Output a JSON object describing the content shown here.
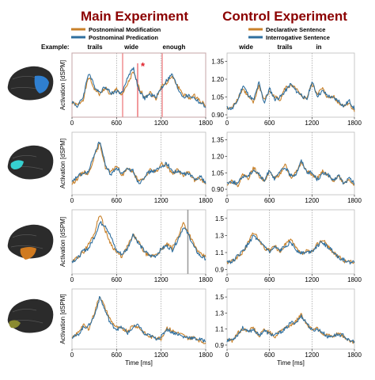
{
  "titles": {
    "main": "Main Experiment",
    "control": "Control Experiment"
  },
  "legend": {
    "main": [
      "Postnominal Modification",
      "Postnominal Predication"
    ],
    "control": [
      "Declarative Sentence",
      "Interrogative Sentence"
    ]
  },
  "example_label": "Example:",
  "words": {
    "main": [
      "trails",
      "wide",
      "enough"
    ],
    "control": [
      "wide",
      "trails",
      "in"
    ]
  },
  "significance_marker": "*",
  "colors": {
    "series_a": "#c8812a",
    "series_b": "#2f6f9f",
    "title": "#8b0000",
    "highlight": "#e8555a",
    "brain": "#2b2b2b"
  },
  "brain_regions": [
    "blue-region-icon",
    "cyan-region-icon",
    "orange-region-icon",
    "olive-region-icon"
  ],
  "chart_data": [
    {
      "panel": "main-row1",
      "type": "line",
      "xlabel": "",
      "ylabel": "Activation [dSPM]",
      "xlim": [
        0,
        1800
      ],
      "xticks": [
        "0",
        "600",
        "1200",
        "1800"
      ],
      "ylim": [
        0.88,
        1.42
      ],
      "yticks": [],
      "word_onsets": [
        0,
        600,
        1200
      ],
      "x": [
        0,
        75,
        150,
        225,
        300,
        375,
        450,
        525,
        600,
        675,
        750,
        825,
        900,
        975,
        1050,
        1125,
        1200,
        1275,
        1350,
        1425,
        1500,
        1575,
        1650,
        1725,
        1800
      ],
      "series": [
        {
          "name": "Postnominal Modification",
          "values": [
            1.0,
            0.98,
            1.03,
            1.22,
            1.12,
            1.07,
            1.13,
            1.06,
            1.12,
            1.06,
            1.16,
            1.26,
            1.13,
            1.05,
            1.09,
            1.03,
            1.14,
            1.17,
            1.22,
            1.14,
            1.07,
            1.04,
            1.06,
            1.02,
            0.98
          ]
        },
        {
          "name": "Postnominal Predication",
          "values": [
            1.01,
            0.97,
            1.05,
            1.26,
            1.14,
            1.09,
            1.14,
            1.08,
            1.1,
            1.08,
            1.22,
            1.3,
            1.1,
            1.04,
            1.07,
            1.05,
            1.12,
            1.19,
            1.24,
            1.12,
            1.05,
            1.06,
            1.04,
            1.0,
            0.97
          ]
        }
      ]
    },
    {
      "panel": "control-row1",
      "type": "line",
      "xlabel": "",
      "ylabel": "",
      "xlim": [
        0,
        1800
      ],
      "xticks": [
        "0",
        "600",
        "1200",
        "1800"
      ],
      "ylim": [
        0.88,
        1.42
      ],
      "yticks": [
        "0.90",
        "1.05",
        "1.20",
        "1.35"
      ],
      "word_onsets": [
        0,
        600,
        1200
      ],
      "x": [
        0,
        75,
        150,
        225,
        300,
        375,
        450,
        525,
        600,
        675,
        750,
        825,
        900,
        975,
        1050,
        1125,
        1200,
        1275,
        1350,
        1425,
        1500,
        1575,
        1650,
        1725,
        1800
      ],
      "series": [
        {
          "name": "Declarative Sentence",
          "values": [
            0.95,
            0.96,
            1.04,
            1.12,
            1.05,
            1.0,
            1.15,
            1.02,
            1.1,
            1.05,
            1.03,
            1.13,
            1.14,
            1.12,
            1.05,
            1.04,
            1.16,
            1.08,
            1.12,
            1.04,
            1.06,
            1.0,
            0.98,
            1.0,
            0.93
          ]
        },
        {
          "name": "Interrogative Sentence",
          "values": [
            0.96,
            0.95,
            1.02,
            1.15,
            1.07,
            1.02,
            1.17,
            1.0,
            1.12,
            1.03,
            1.05,
            1.1,
            1.16,
            1.1,
            1.07,
            1.02,
            1.18,
            1.06,
            1.1,
            1.06,
            1.04,
            1.02,
            0.97,
            1.02,
            0.95
          ]
        }
      ]
    },
    {
      "panel": "main-row2",
      "type": "line",
      "xlabel": "",
      "ylabel": "Activation [dSPM]",
      "xlim": [
        0,
        1800
      ],
      "xticks": [
        "0",
        "600",
        "1200",
        "1800"
      ],
      "ylim": [
        0.85,
        1.42
      ],
      "yticks": [],
      "word_onsets": [
        0,
        600,
        1200
      ],
      "x": [
        0,
        75,
        150,
        225,
        300,
        375,
        450,
        525,
        600,
        675,
        750,
        825,
        900,
        975,
        1050,
        1125,
        1200,
        1275,
        1350,
        1425,
        1500,
        1575,
        1650,
        1725,
        1800
      ],
      "series": [
        {
          "name": "Postnominal Modification",
          "values": [
            0.95,
            1.0,
            1.06,
            1.04,
            1.2,
            1.32,
            1.1,
            1.05,
            1.12,
            1.02,
            1.1,
            1.05,
            0.97,
            1.0,
            1.08,
            1.05,
            1.13,
            1.12,
            1.04,
            1.08,
            1.02,
            1.06,
            0.98,
            1.0,
            0.95
          ]
        },
        {
          "name": "Postnominal Predication",
          "values": [
            0.96,
            1.02,
            1.04,
            1.06,
            1.22,
            1.34,
            1.12,
            1.03,
            1.1,
            1.04,
            1.08,
            1.07,
            0.95,
            1.02,
            1.06,
            1.07,
            1.1,
            1.14,
            1.06,
            1.06,
            1.04,
            1.04,
            0.99,
            1.02,
            0.96
          ]
        }
      ]
    },
    {
      "panel": "control-row2",
      "type": "line",
      "xlabel": "",
      "ylabel": "",
      "xlim": [
        0,
        1800
      ],
      "xticks": [
        "0",
        "600",
        "1200",
        "1800"
      ],
      "ylim": [
        0.85,
        1.42
      ],
      "yticks": [
        "0.90",
        "1.05",
        "1.20",
        "1.35"
      ],
      "word_onsets": [
        0,
        600,
        1200
      ],
      "x": [
        0,
        75,
        150,
        225,
        300,
        375,
        450,
        525,
        600,
        675,
        750,
        825,
        900,
        975,
        1050,
        1125,
        1200,
        1275,
        1350,
        1425,
        1500,
        1575,
        1650,
        1725,
        1800
      ],
      "series": [
        {
          "name": "Declarative Sentence",
          "values": [
            0.95,
            0.98,
            0.93,
            1.04,
            1.0,
            1.1,
            1.02,
            0.98,
            1.06,
            1.0,
            1.04,
            1.12,
            1.0,
            1.06,
            1.14,
            1.08,
            1.03,
            1.0,
            1.06,
            1.02,
            0.98,
            1.02,
            0.96,
            0.99,
            0.94
          ]
        },
        {
          "name": "Interrogative Sentence",
          "values": [
            0.96,
            0.97,
            0.95,
            1.02,
            1.02,
            1.08,
            1.04,
            0.97,
            1.08,
            0.99,
            1.06,
            1.1,
            1.02,
            1.04,
            1.16,
            1.06,
            1.05,
            0.99,
            1.04,
            1.04,
            0.97,
            1.03,
            0.95,
            1.0,
            0.95
          ]
        }
      ]
    },
    {
      "panel": "main-row3",
      "type": "line",
      "xlabel": "",
      "ylabel": "Activation [dSPM]",
      "xlim": [
        0,
        1800
      ],
      "xticks": [
        "0",
        "600",
        "1200",
        "1800"
      ],
      "ylim": [
        0.85,
        1.6
      ],
      "yticks": [],
      "word_onsets": [
        0,
        600,
        1200,
        1560
      ],
      "x": [
        0,
        75,
        150,
        225,
        300,
        375,
        450,
        525,
        600,
        675,
        750,
        825,
        900,
        975,
        1050,
        1125,
        1200,
        1275,
        1350,
        1425,
        1500,
        1575,
        1650,
        1725,
        1800
      ],
      "series": [
        {
          "name": "Postnominal Modification",
          "values": [
            0.98,
            1.05,
            1.1,
            1.2,
            1.32,
            1.56,
            1.35,
            1.2,
            1.1,
            1.05,
            1.18,
            1.3,
            1.22,
            1.1,
            1.05,
            1.08,
            1.12,
            1.2,
            1.15,
            1.28,
            1.45,
            1.32,
            1.18,
            1.08,
            1.05
          ]
        },
        {
          "name": "Postnominal Predication",
          "values": [
            1.0,
            1.03,
            1.12,
            1.15,
            1.28,
            1.45,
            1.42,
            1.28,
            1.12,
            1.08,
            1.15,
            1.32,
            1.2,
            1.12,
            1.06,
            1.06,
            1.14,
            1.18,
            1.13,
            1.25,
            1.4,
            1.3,
            1.15,
            1.06,
            1.03
          ]
        }
      ]
    },
    {
      "panel": "control-row3",
      "type": "line",
      "xlabel": "",
      "ylabel": "",
      "xlim": [
        0,
        1800
      ],
      "xticks": [
        "0",
        "600",
        "1200",
        "1800"
      ],
      "ylim": [
        0.85,
        1.6
      ],
      "yticks": [
        "0.9",
        "1.1",
        "1.3",
        "1.5"
      ],
      "word_onsets": [
        0,
        600,
        1200
      ],
      "x": [
        0,
        75,
        150,
        225,
        300,
        375,
        450,
        525,
        600,
        675,
        750,
        825,
        900,
        975,
        1050,
        1125,
        1200,
        1275,
        1350,
        1425,
        1500,
        1575,
        1650,
        1725,
        1800
      ],
      "series": [
        {
          "name": "Declarative Sentence",
          "values": [
            0.98,
            1.0,
            1.05,
            1.1,
            1.22,
            1.34,
            1.25,
            1.15,
            1.12,
            1.18,
            1.1,
            1.2,
            1.25,
            1.15,
            1.08,
            1.12,
            1.1,
            1.2,
            1.25,
            1.18,
            1.1,
            1.05,
            1.0,
            1.0,
            0.98
          ]
        },
        {
          "name": "Interrogative Sentence",
          "values": [
            1.0,
            0.99,
            1.06,
            1.12,
            1.2,
            1.3,
            1.22,
            1.18,
            1.1,
            1.16,
            1.12,
            1.18,
            1.22,
            1.13,
            1.1,
            1.1,
            1.12,
            1.18,
            1.22,
            1.16,
            1.12,
            1.04,
            1.02,
            0.98,
            0.99
          ]
        }
      ]
    },
    {
      "panel": "main-row4",
      "type": "line",
      "xlabel": "Time [ms]",
      "ylabel": "Activation [dSPM]",
      "xlim": [
        0,
        1800
      ],
      "xticks": [
        "0",
        "600",
        "1200",
        "1800"
      ],
      "ylim": [
        0.85,
        1.6
      ],
      "yticks": [],
      "word_onsets": [
        0,
        600,
        1200
      ],
      "x": [
        0,
        75,
        150,
        225,
        300,
        375,
        450,
        525,
        600,
        675,
        750,
        825,
        900,
        975,
        1050,
        1125,
        1200,
        1275,
        1350,
        1425,
        1500,
        1575,
        1650,
        1725,
        1800
      ],
      "series": [
        {
          "name": "Postnominal Modification",
          "values": [
            0.98,
            1.05,
            1.15,
            1.1,
            1.3,
            1.52,
            1.35,
            1.2,
            1.12,
            1.1,
            1.08,
            1.15,
            1.12,
            1.05,
            1.0,
            1.0,
            0.98,
            1.12,
            1.08,
            1.05,
            1.02,
            0.98,
            1.0,
            0.95,
            0.93
          ]
        },
        {
          "name": "Postnominal Predication",
          "values": [
            1.0,
            1.02,
            1.12,
            1.14,
            1.26,
            1.5,
            1.32,
            1.16,
            1.1,
            1.12,
            1.05,
            1.12,
            1.15,
            1.03,
            1.02,
            0.98,
            1.0,
            1.1,
            1.06,
            1.04,
            1.0,
            1.0,
            0.98,
            0.97,
            0.95
          ]
        }
      ]
    },
    {
      "panel": "control-row4",
      "type": "line",
      "xlabel": "Time [ms]",
      "ylabel": "",
      "xlim": [
        0,
        1800
      ],
      "xticks": [
        "0",
        "600",
        "1200",
        "1800"
      ],
      "ylim": [
        0.85,
        1.6
      ],
      "yticks": [
        "0.9",
        "1.1",
        "1.3",
        "1.5"
      ],
      "word_onsets": [
        0,
        600,
        1200
      ],
      "x": [
        0,
        75,
        150,
        225,
        300,
        375,
        450,
        525,
        600,
        675,
        750,
        825,
        900,
        975,
        1050,
        1125,
        1200,
        1275,
        1350,
        1425,
        1500,
        1575,
        1650,
        1725,
        1800
      ],
      "series": [
        {
          "name": "Declarative Sentence",
          "values": [
            0.98,
            0.95,
            1.05,
            1.1,
            1.08,
            1.12,
            1.0,
            1.1,
            1.06,
            1.0,
            1.08,
            1.12,
            1.15,
            1.2,
            1.28,
            1.16,
            1.1,
            1.12,
            1.04,
            1.02,
            1.0,
            1.05,
            1.0,
            0.96,
            0.93
          ]
        },
        {
          "name": "Interrogative Sentence",
          "values": [
            0.96,
            0.97,
            1.03,
            1.12,
            1.06,
            1.1,
            1.02,
            1.08,
            1.04,
            1.02,
            1.06,
            1.1,
            1.18,
            1.18,
            1.26,
            1.18,
            1.08,
            1.1,
            1.06,
            1.0,
            1.02,
            1.03,
            1.02,
            0.95,
            0.95
          ]
        }
      ]
    }
  ]
}
